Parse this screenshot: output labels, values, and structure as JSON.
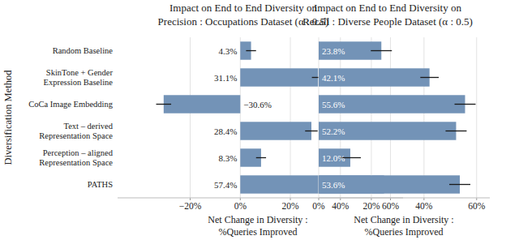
{
  "chart_data": [
    {
      "type": "bar",
      "orientation": "horizontal",
      "title": "Impact on End to End Diversity on",
      "subtitle": "Precision : Occupations Dataset (α : 0.5)",
      "x_label": "Net Change in Diversity : %Queries Improved",
      "y_label": "Diversification Method",
      "categories": [
        "Random Baseline",
        "SkinTone + Gender Expression Baseline",
        "CoCa Image Embedding",
        "Text – derived Representation Space",
        "Perception – aligned Representation Space",
        "PATHS"
      ],
      "values": [
        4.3,
        31.1,
        -30.6,
        28.4,
        8.3,
        57.4
      ],
      "errors": [
        2,
        2.5,
        3,
        2.5,
        2,
        3
      ],
      "value_labels": [
        "4.3%",
        "31.1%",
        "−30.6%",
        "28.4%",
        "8.3%",
        "57.4%"
      ],
      "data_labels": true,
      "color": "#7393b7",
      "xlim": [
        -49,
        65
      ],
      "xticks": [
        {
          "value": -20,
          "label": "−20%"
        },
        {
          "value": 0,
          "label": "0%"
        },
        {
          "value": 20,
          "label": "20%"
        },
        {
          "value": 40,
          "label": "40%"
        },
        {
          "value": 60,
          "label": "60%"
        }
      ],
      "grid": true
    },
    {
      "type": "bar",
      "orientation": "horizontal",
      "title": "Impact on End to End Diversity on",
      "subtitle": "Recall : Diverse People Dataset (α : 0.5)",
      "x_label": "Net Change in Diversity : %Queries Improved",
      "categories": [
        null,
        null,
        null,
        null,
        null,
        null
      ],
      "values": [
        23.8,
        42.1,
        55.6,
        52.2,
        12.0,
        53.6
      ],
      "errors": [
        4,
        3.5,
        4,
        4,
        4,
        4
      ],
      "value_labels": [
        "23.8%",
        "42.1%",
        "55.6%",
        "52.2%",
        "12.0%",
        "53.6%"
      ],
      "data_labels": true,
      "color": "#7393b7",
      "xlim": [
        0,
        65
      ],
      "xticks": [
        {
          "value": 0,
          "label": "0%"
        },
        {
          "value": 20,
          "label": "20%"
        },
        {
          "value": 40,
          "label": "40%"
        },
        {
          "value": 60,
          "label": "60%"
        }
      ],
      "grid": true
    }
  ]
}
